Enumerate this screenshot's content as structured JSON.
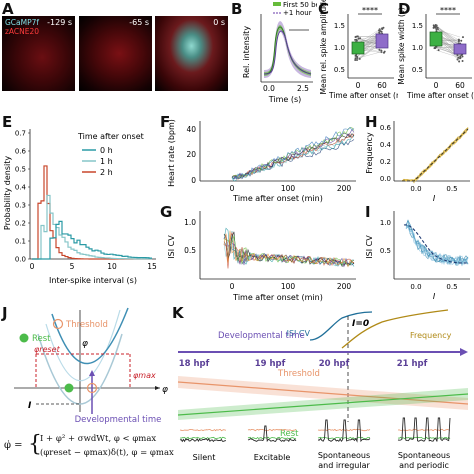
{
  "panel_letters": [
    "A",
    "B",
    "C",
    "D",
    "E",
    "F",
    "G",
    "H",
    "I",
    "J",
    "K"
  ],
  "A": {
    "channel1": "GCaMP7f",
    "channel2": "zACNE20",
    "timestamps": [
      "-129 s",
      "-65 s",
      "0 s"
    ]
  },
  "B": {
    "ylabel": "Rel. intensity",
    "xlabel": "Time (s)",
    "xticks": [
      "0.0",
      "2.5"
    ],
    "legend": [
      "First 50 beats",
      "+1 hour"
    ],
    "legend_colors": [
      "#66bb3a",
      "#9a7cc6"
    ]
  },
  "C": {
    "ylabel": "Mean rel. spike amplitude",
    "xlabel": "Time after onset (min)",
    "xticks": [
      "0",
      "60"
    ],
    "yticks": [
      "1.5",
      "1.0",
      "0.5"
    ],
    "significance": "****"
  },
  "D": {
    "ylabel": "Mean spike width (s)",
    "xlabel": "Time after onset (min)",
    "xticks": [
      "0",
      "60"
    ],
    "yticks": [
      "1.5",
      "1.0",
      "0.5"
    ],
    "significance": "****"
  },
  "E": {
    "ylabel": "Probability density",
    "xlabel": "Inter-spike interval (s)",
    "xticks": [
      "0",
      "5",
      "10",
      "15"
    ],
    "yticks": [
      "0.0",
      "0.1",
      "0.2",
      "0.3",
      "0.4",
      "0.5",
      "0.6",
      "0.7"
    ],
    "legend_title": "Time after onset",
    "legend": [
      "0 h",
      "1 h",
      "2 h"
    ],
    "colors": [
      "#2a9aa5",
      "#86c5c8",
      "#c8462b"
    ]
  },
  "F": {
    "ylabel": "Heart rate (bpm)",
    "xlabel": "Time after onset (min)",
    "xticks": [
      "0",
      "100",
      "200"
    ],
    "yticks": [
      "40",
      "20",
      "0"
    ]
  },
  "G": {
    "ylabel": "ISI CV",
    "xlabel": "Time after onset (min)",
    "xticks": [
      "0",
      "100",
      "200"
    ],
    "yticks": [
      "1.0",
      "0.5"
    ]
  },
  "H": {
    "ylabel": "Frequency",
    "xlabel": "I",
    "xticks": [
      "0.0",
      "0.5"
    ],
    "yticks": [
      "0.6",
      "0.4",
      "0.2",
      "0.0"
    ]
  },
  "I": {
    "ylabel": "ISI CV",
    "xlabel": "I",
    "xticks": [
      "0.0",
      "0.5"
    ],
    "yticks": [
      "1.0",
      "0.5"
    ]
  },
  "J": {
    "threshold": "Threshold",
    "rest": "Rest",
    "phi": "φ",
    "phi_reset": "φreset",
    "phi_max": "φmax",
    "I": "I",
    "dev_time": "Developmental time",
    "eq1": "I + φ² + σwdWt,    φ < φmax",
    "eq2": "(φreset − φmax)δ(t),   φ = φmax",
    "eq_lhs": "φ̇ ="
  },
  "K": {
    "isicv": "ISI CV",
    "I0": "I=0",
    "frequency": "Frequency",
    "dev_time": "Developmental time",
    "stages": [
      "18 hpf",
      "19 hpf",
      "20 hpf",
      "21 hpf"
    ],
    "threshold": "Threshold",
    "rest": "Rest",
    "regimes": [
      "Silent",
      "Excitable",
      "Spontaneous and irregular",
      "Spontaneous and periodic"
    ]
  },
  "colors": {
    "threshold": "#e8946a",
    "rest": "#4cbb4a",
    "purple": "#6b4fb3",
    "teal": "#1f6f99",
    "olive": "#b08a17",
    "red": "#c8202a"
  }
}
